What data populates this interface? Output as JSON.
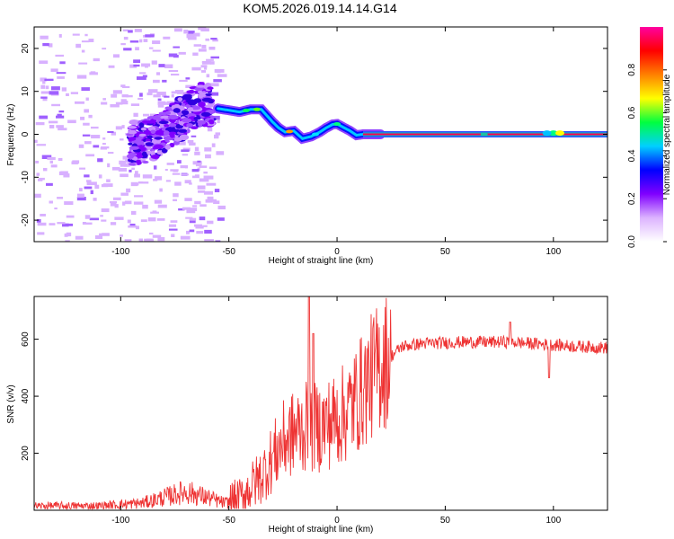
{
  "title": "KOM5.2026.019.14.14.G14",
  "chart_data": [
    {
      "type": "heatmap",
      "xlabel": "Height of straight line (km)",
      "ylabel": "Frequency (Hz)",
      "xlim": [
        -140,
        125
      ],
      "ylim": [
        -25,
        25
      ],
      "xticks": [
        -100,
        -50,
        0,
        50,
        100
      ],
      "yticks": [
        -20,
        -10,
        0,
        10,
        20
      ],
      "colorbar": {
        "label": "Normalized spectral amplitude",
        "ticks": [
          "0.0",
          "0.2",
          "0.4",
          "0.6",
          "0.8"
        ],
        "tick_values": [
          0,
          0.2,
          0.4,
          0.6,
          0.8
        ],
        "range": [
          0,
          1
        ],
        "colors": [
          "#ffffff",
          "#dcb3ff",
          "#8000ff",
          "#0000ff",
          "#00d0ff",
          "#00ff40",
          "#ffff00",
          "#ff8000",
          "#ff0000",
          "#ff00a0"
        ]
      },
      "ridge": {
        "x": [
          -55,
          -50,
          -45,
          -40,
          -35,
          -30,
          -27,
          -24,
          -20,
          -16,
          -12,
          -8,
          -5,
          -2,
          0,
          3,
          6,
          9,
          12,
          15,
          20,
          30,
          50,
          70,
          90,
          95,
          100,
          105,
          110,
          125
        ],
        "y": [
          6.0,
          5.6,
          5.2,
          5.8,
          5.8,
          3.0,
          1.5,
          0.5,
          0.8,
          -1.0,
          -0.5,
          0.5,
          1.5,
          2.3,
          2.4,
          1.6,
          0.8,
          -0.2,
          0.0,
          0.0,
          0.0,
          0.0,
          0.0,
          0.0,
          0.0,
          0.0,
          0.3,
          0.0,
          0.0,
          0.0
        ]
      },
      "noisy_cloud": {
        "x": [
          -90,
          -80,
          -75,
          -70,
          -65,
          -60
        ],
        "y": [
          -2.0,
          0.5,
          2.5,
          4.5,
          6.5,
          7.0
        ]
      },
      "carrier_line": {
        "from_x": 12,
        "to_x": 125,
        "y": 0
      }
    },
    {
      "type": "line",
      "xlabel": "Height of straight line (km)",
      "ylabel": "SNR (v/v)",
      "xlim": [
        -140,
        125
      ],
      "ylim": [
        0,
        750
      ],
      "xticks": [
        -100,
        -50,
        0,
        50,
        100
      ],
      "yticks": [
        200,
        400,
        600
      ],
      "color": "#ee3333",
      "trend": {
        "x": [
          -140,
          -110,
          -90,
          -80,
          -70,
          -60,
          -52,
          -45,
          -40,
          -35,
          -30,
          -25,
          -20,
          -15,
          -10,
          -5,
          0,
          5,
          10,
          15,
          20,
          25,
          30,
          40,
          60,
          80,
          100,
          110,
          125
        ],
        "y": [
          15,
          15,
          25,
          45,
          65,
          45,
          25,
          40,
          80,
          120,
          180,
          240,
          270,
          290,
          290,
          300,
          320,
          350,
          400,
          460,
          510,
          540,
          575,
          585,
          590,
          590,
          580,
          575,
          570
        ]
      },
      "spikes": [
        {
          "x": -13,
          "y": 750
        },
        {
          "x": -11,
          "y": 620
        },
        {
          "x": 80,
          "y": 660
        },
        {
          "x": 98,
          "y": 465
        }
      ]
    }
  ]
}
